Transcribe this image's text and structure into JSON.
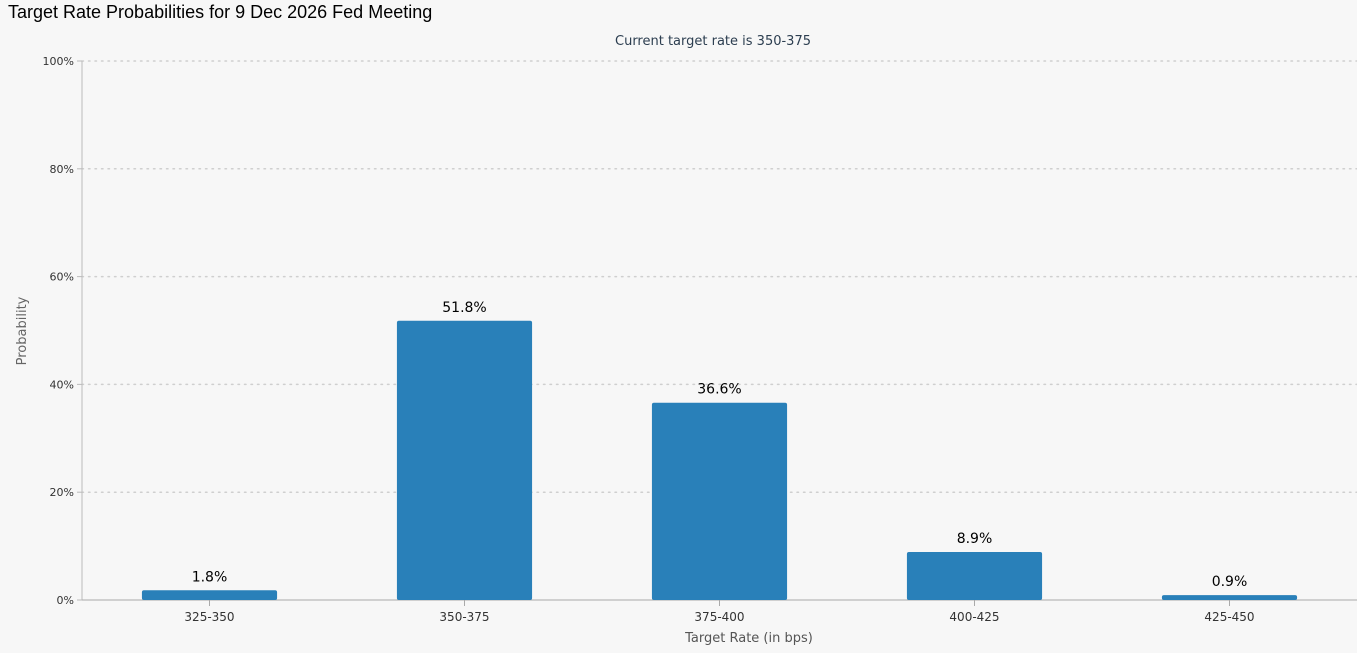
{
  "page_title": "Target Rate Probabilities for 9 Dec 2026 Fed Meeting",
  "chart_data": {
    "type": "bar",
    "title": "",
    "subtitle": "Current target rate is 350-375",
    "xlabel": "Target Rate (in bps)",
    "ylabel": "Probability",
    "categories": [
      "325-350",
      "350-375",
      "375-400",
      "400-425",
      "425-450"
    ],
    "values": [
      1.8,
      51.8,
      36.6,
      8.9,
      0.9
    ],
    "data_labels": [
      "1.8%",
      "51.8%",
      "36.6%",
      "8.9%",
      "0.9%"
    ],
    "ylim": [
      0,
      100
    ],
    "yticks": [
      0,
      20,
      40,
      60,
      80,
      100
    ],
    "ytick_labels": [
      "0%",
      "20%",
      "40%",
      "60%",
      "80%",
      "100%"
    ],
    "grid": true,
    "legend": "none",
    "colors": {
      "bar": "#2980b9",
      "grid": "#cfcfcf",
      "axis_text": "#333333",
      "subtitle": "#2c3e50"
    }
  }
}
